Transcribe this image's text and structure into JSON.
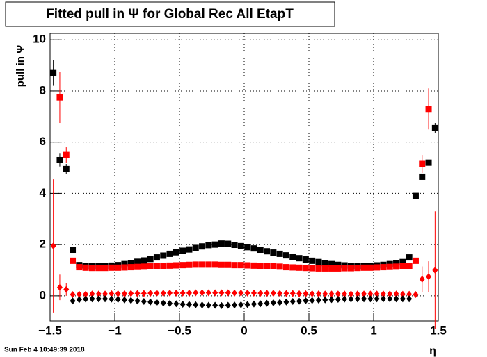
{
  "chart_data": {
    "type": "scatter",
    "title": "Fitted pull in  Ψ  for Global Rec All EtapT",
    "y_label": "pull in  Ψ",
    "x_label": "η",
    "timestamp": "Sun Feb  4 10:49:39 2018",
    "x": [
      -1.475,
      -1.425,
      -1.375,
      -1.325,
      -1.275,
      -1.225,
      -1.175,
      -1.125,
      -1.075,
      -1.025,
      -0.975,
      -0.925,
      -0.875,
      -0.825,
      -0.775,
      -0.725,
      -0.675,
      -0.625,
      -0.575,
      -0.525,
      -0.475,
      -0.425,
      -0.375,
      -0.325,
      -0.275,
      -0.225,
      -0.175,
      -0.125,
      -0.075,
      -0.025,
      0.025,
      0.075,
      0.125,
      0.175,
      0.225,
      0.275,
      0.325,
      0.375,
      0.425,
      0.475,
      0.525,
      0.575,
      0.625,
      0.675,
      0.725,
      0.775,
      0.825,
      0.875,
      0.925,
      0.975,
      1.025,
      1.075,
      1.125,
      1.175,
      1.225,
      1.275,
      1.325,
      1.375,
      1.425,
      1.475
    ],
    "series": [
      {
        "color": "#000000",
        "marker": "square",
        "values": [
          8.7,
          5.3,
          4.95,
          1.8,
          1.2,
          1.16,
          1.15,
          1.15,
          1.16,
          1.18,
          1.2,
          1.24,
          1.28,
          1.33,
          1.38,
          1.44,
          1.5,
          1.57,
          1.64,
          1.7,
          1.76,
          1.81,
          1.87,
          1.93,
          1.98,
          2.0,
          2.04,
          2.03,
          1.99,
          1.94,
          1.9,
          1.85,
          1.8,
          1.74,
          1.69,
          1.64,
          1.58,
          1.52,
          1.47,
          1.42,
          1.37,
          1.32,
          1.28,
          1.24,
          1.21,
          1.19,
          1.17,
          1.16,
          1.16,
          1.17,
          1.19,
          1.21,
          1.24,
          1.27,
          1.32,
          1.5,
          3.9,
          4.65,
          5.2,
          6.55
        ],
        "errors": [
          0.5,
          0.25,
          0.2,
          null,
          null,
          null,
          null,
          null,
          null,
          null,
          null,
          null,
          null,
          null,
          null,
          null,
          null,
          null,
          null,
          null,
          null,
          null,
          null,
          null,
          null,
          null,
          null,
          null,
          null,
          null,
          null,
          null,
          null,
          null,
          null,
          null,
          null,
          null,
          null,
          null,
          null,
          null,
          null,
          null,
          null,
          null,
          null,
          null,
          null,
          null,
          null,
          null,
          null,
          null,
          null,
          null,
          null,
          null,
          null,
          0.2
        ]
      },
      {
        "color": "#ff0000",
        "marker": "square",
        "values": [
          null,
          7.75,
          5.5,
          1.37,
          1.12,
          1.1,
          1.09,
          1.09,
          1.09,
          1.1,
          1.1,
          1.11,
          1.12,
          1.13,
          1.14,
          1.15,
          1.16,
          1.17,
          1.18,
          1.19,
          1.2,
          1.21,
          1.22,
          1.22,
          1.22,
          1.22,
          1.21,
          1.21,
          1.2,
          1.2,
          1.19,
          1.18,
          1.17,
          1.16,
          1.15,
          1.14,
          1.12,
          1.11,
          1.1,
          1.09,
          1.08,
          1.07,
          1.07,
          1.07,
          1.07,
          1.08,
          1.08,
          1.09,
          1.1,
          1.1,
          1.11,
          1.12,
          1.13,
          1.14,
          1.15,
          1.17,
          1.37,
          5.15,
          7.3,
          null
        ],
        "errors": [
          null,
          1.0,
          0.3,
          null,
          null,
          null,
          null,
          null,
          null,
          null,
          null,
          null,
          null,
          null,
          null,
          null,
          null,
          null,
          null,
          null,
          null,
          null,
          null,
          null,
          null,
          null,
          null,
          null,
          null,
          null,
          null,
          null,
          null,
          null,
          null,
          null,
          null,
          null,
          null,
          null,
          null,
          null,
          null,
          null,
          null,
          null,
          null,
          null,
          null,
          null,
          null,
          null,
          null,
          null,
          null,
          null,
          null,
          0.35,
          0.8,
          null
        ]
      },
      {
        "color": "#ff0000",
        "marker": "diamond",
        "values": [
          1.95,
          0.33,
          0.25,
          0.05,
          0.06,
          0.06,
          0.07,
          0.07,
          0.07,
          0.08,
          0.08,
          0.08,
          0.09,
          0.09,
          0.09,
          0.1,
          0.1,
          0.1,
          0.11,
          0.11,
          0.11,
          0.11,
          0.12,
          0.12,
          0.12,
          0.12,
          0.12,
          0.12,
          0.11,
          0.11,
          0.11,
          0.11,
          0.1,
          0.1,
          0.1,
          0.09,
          0.09,
          0.09,
          0.08,
          0.08,
          0.08,
          0.08,
          0.07,
          0.07,
          0.07,
          0.07,
          0.07,
          0.07,
          0.07,
          0.07,
          0.07,
          0.07,
          0.07,
          0.07,
          0.06,
          0.06,
          0.05,
          0.65,
          0.75,
          1.0
        ],
        "errors": [
          2.6,
          0.5,
          0.25,
          null,
          null,
          null,
          null,
          null,
          null,
          null,
          null,
          null,
          null,
          null,
          null,
          null,
          null,
          null,
          null,
          null,
          null,
          null,
          null,
          null,
          null,
          null,
          null,
          null,
          null,
          null,
          null,
          null,
          null,
          null,
          null,
          null,
          null,
          null,
          null,
          null,
          null,
          null,
          null,
          null,
          null,
          null,
          null,
          null,
          null,
          null,
          null,
          null,
          null,
          null,
          null,
          null,
          null,
          0.5,
          0.6,
          2.3
        ]
      },
      {
        "color": "#000000",
        "marker": "diamond",
        "values": [
          null,
          null,
          null,
          -0.2,
          -0.15,
          -0.13,
          -0.12,
          -0.12,
          -0.12,
          -0.13,
          -0.14,
          -0.16,
          -0.18,
          -0.2,
          -0.22,
          -0.24,
          -0.26,
          -0.28,
          -0.3,
          -0.31,
          -0.33,
          -0.34,
          -0.35,
          -0.36,
          -0.37,
          -0.37,
          -0.38,
          -0.37,
          -0.36,
          -0.35,
          -0.34,
          -0.32,
          -0.31,
          -0.29,
          -0.27,
          -0.26,
          -0.24,
          -0.22,
          -0.21,
          -0.19,
          -0.18,
          -0.17,
          -0.16,
          -0.15,
          -0.14,
          -0.13,
          -0.13,
          -0.12,
          -0.12,
          -0.12,
          -0.12,
          -0.12,
          -0.12,
          -0.12,
          -0.12,
          -0.12,
          null,
          null,
          null,
          null
        ]
      }
    ],
    "xlim": [
      -1.5,
      1.5
    ],
    "ylim": [
      -0.98,
      10.25
    ],
    "xticks": [
      {
        "value": -1.5,
        "label": "−1.5"
      },
      {
        "value": -1,
        "label": "−1"
      },
      {
        "value": -0.5,
        "label": "−0.5"
      },
      0,
      0.5,
      1,
      1.5
    ],
    "yticks": [
      0,
      2,
      4,
      6,
      8,
      10
    ],
    "grid": true
  }
}
